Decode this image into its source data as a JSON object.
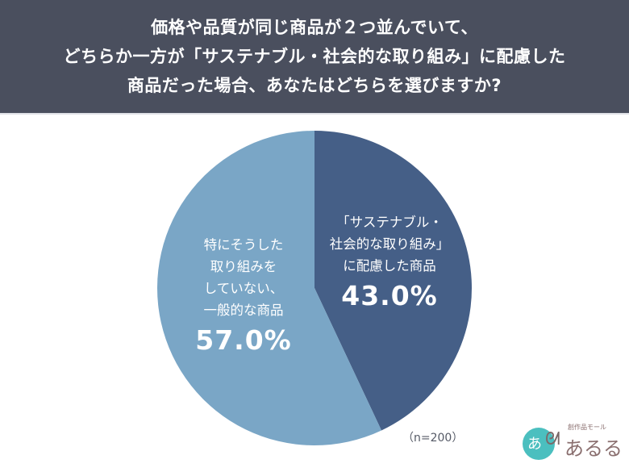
{
  "header": {
    "lines": [
      "価格や品質が同じ商品が２つ並んでいて、",
      "どちらか一方が「サステナブル・社会的な取り組み」に配慮した",
      "商品だった場合、あなたはどちらを選びますか?"
    ]
  },
  "slices": [
    {
      "label_lines": [
        "「サステナブル・",
        "社会的な取り組み」",
        "に配慮した商品"
      ],
      "percent_label": "43.0%",
      "value": 43.0,
      "color": "#455f87"
    },
    {
      "label_lines": [
        "特にそうした",
        "取り組みを",
        "していない、",
        "一般的な商品"
      ],
      "percent_label": "57.0%",
      "value": 57.0,
      "color": "#7aa6c6"
    }
  ],
  "sample_note": "（n=200）",
  "logo": {
    "tagline": "創作品モール",
    "name": "あるる",
    "mark_char": "あ"
  },
  "colors": {
    "header_bg": "#4a4f5e",
    "slice_dark": "#455f87",
    "slice_light": "#7aa6c6"
  },
  "chart_data": {
    "type": "pie",
    "title": "価格や品質が同じ商品が２つ並んでいて、どちらか一方が「サステナブル・社会的な取り組み」に配慮した商品だった場合、あなたはどちらを選びますか?",
    "categories": [
      "「サステナブル・社会的な取り組み」に配慮した商品",
      "特にそうした取り組みをしていない、一般的な商品"
    ],
    "values": [
      43.0,
      57.0
    ],
    "units": "%",
    "start_angle": "12 o'clock, clockwise",
    "annotations": [
      "（n=200）"
    ],
    "legend": "none (labels inside slices)"
  }
}
